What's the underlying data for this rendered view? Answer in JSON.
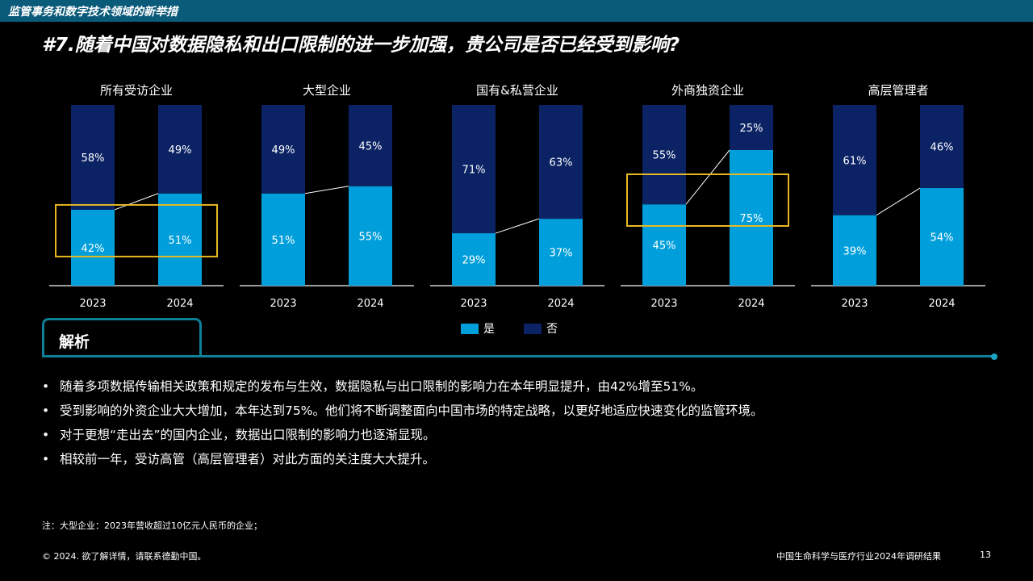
{
  "header": {
    "section_title": "监管事务和数字技术领域的新举措"
  },
  "question": "#7.随着中国对数据隐私和出口限制的进一步加强，贵公司是否已经受到影响?",
  "colors": {
    "yes": "#009fdb",
    "no": "#0b2265",
    "highlight": "#e8b820",
    "accent": "#0e7f98"
  },
  "chart_data": {
    "type": "bar",
    "stacked": true,
    "ylim": [
      0,
      100
    ],
    "legend": {
      "position": "bottom-center",
      "entries": [
        "是",
        "否"
      ]
    },
    "groups": [
      {
        "title": "所有受访企业",
        "categories": [
          "2023",
          "2024"
        ],
        "series": [
          {
            "name": "是",
            "values": [
              42,
              51
            ]
          },
          {
            "name": "否",
            "values": [
              58,
              49
            ]
          }
        ],
        "highlight": true
      },
      {
        "title": "大型企业",
        "categories": [
          "2023",
          "2024"
        ],
        "series": [
          {
            "name": "是",
            "values": [
              51,
              55
            ]
          },
          {
            "name": "否",
            "values": [
              49,
              45
            ]
          }
        ],
        "highlight": false
      },
      {
        "title": "国有&私营企业",
        "categories": [
          "2023",
          "2024"
        ],
        "series": [
          {
            "name": "是",
            "values": [
              29,
              37
            ]
          },
          {
            "name": "否",
            "values": [
              71,
              63
            ]
          }
        ],
        "highlight": false
      },
      {
        "title": "外商独资企业",
        "categories": [
          "2023",
          "2024"
        ],
        "series": [
          {
            "name": "是",
            "values": [
              45,
              75
            ]
          },
          {
            "name": "否",
            "values": [
              55,
              25
            ]
          }
        ],
        "highlight": true
      },
      {
        "title": "高层管理者",
        "categories": [
          "2023",
          "2024"
        ],
        "series": [
          {
            "name": "是",
            "values": [
              39,
              54
            ]
          },
          {
            "name": "否",
            "values": [
              61,
              46
            ]
          }
        ],
        "highlight": false
      }
    ]
  },
  "analysis": {
    "title": "解析",
    "bullets": [
      "随着多项数据传输相关政策和规定的发布与生效，数据隐私与出口限制的影响力在本年明显提升，由42%增至51%。",
      "受到影响的外资企业大大增加，本年达到75%。他们将不断调整面向中国市场的特定战略，以更好地适应快速变化的监管环境。",
      "对于更想“走出去”的国内企业，数据出口限制的影响力也逐渐显现。",
      "相较前一年，受访高管（高层管理者）对此方面的关注度大大提升。"
    ],
    "bullet_symbol": "•"
  },
  "note": "注：大型企业：2023年营收超过10亿元人民币的企业；",
  "footer": {
    "copyright": "© 2024. 欲了解详情，请联系德勤中国。",
    "report_title": "中国生命科学与医疗行业2024年调研结果",
    "page": "13"
  }
}
